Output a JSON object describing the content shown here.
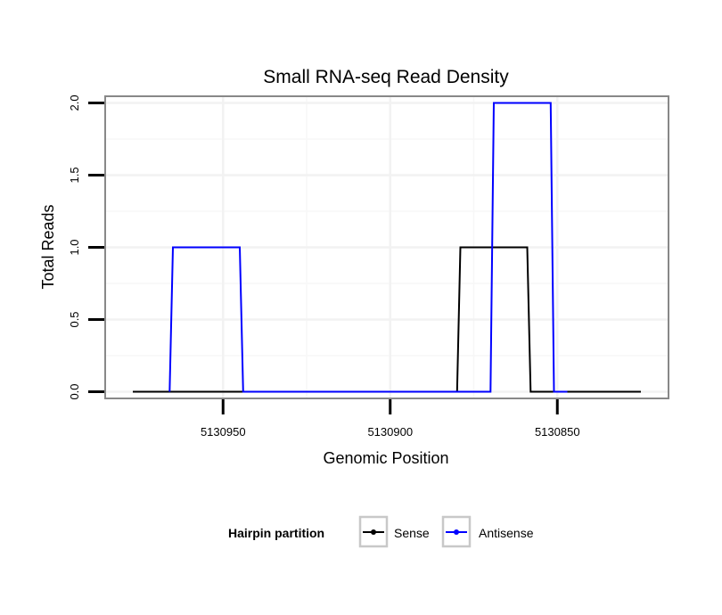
{
  "chart_data": {
    "type": "line",
    "title": "Small RNA-seq Read Density",
    "xlabel": "Genomic Position",
    "ylabel": "Total Reads",
    "x_reversed": true,
    "xlim": [
      5130985,
      5130817
    ],
    "ylim": [
      -0.04,
      2.04
    ],
    "x_ticks": [
      5130950,
      5130900,
      5130850
    ],
    "x_tick_labels": [
      "5130950",
      "5130900",
      "5130850"
    ],
    "y_ticks": [
      0,
      0.5,
      1,
      1.5,
      2
    ],
    "y_tick_labels": [
      "0.0",
      "0.5",
      "1.0",
      "1.5",
      "2.0"
    ],
    "grid": true,
    "legend_position": "bottom",
    "legend_title": "Hairpin partition",
    "series": [
      {
        "name": "Sense",
        "color": "#000000",
        "x": [
          5130977,
          5130880,
          5130879,
          5130859,
          5130858,
          5130825
        ],
        "y": [
          0,
          0,
          1,
          1,
          0,
          0
        ]
      },
      {
        "name": "Antisense",
        "color": "#0000ff",
        "x": [
          5130966,
          5130965,
          5130945,
          5130944,
          5130870,
          5130869,
          5130852,
          5130851,
          5130847
        ],
        "y": [
          0,
          1,
          1,
          0,
          0,
          2,
          2,
          0,
          0
        ]
      }
    ]
  }
}
